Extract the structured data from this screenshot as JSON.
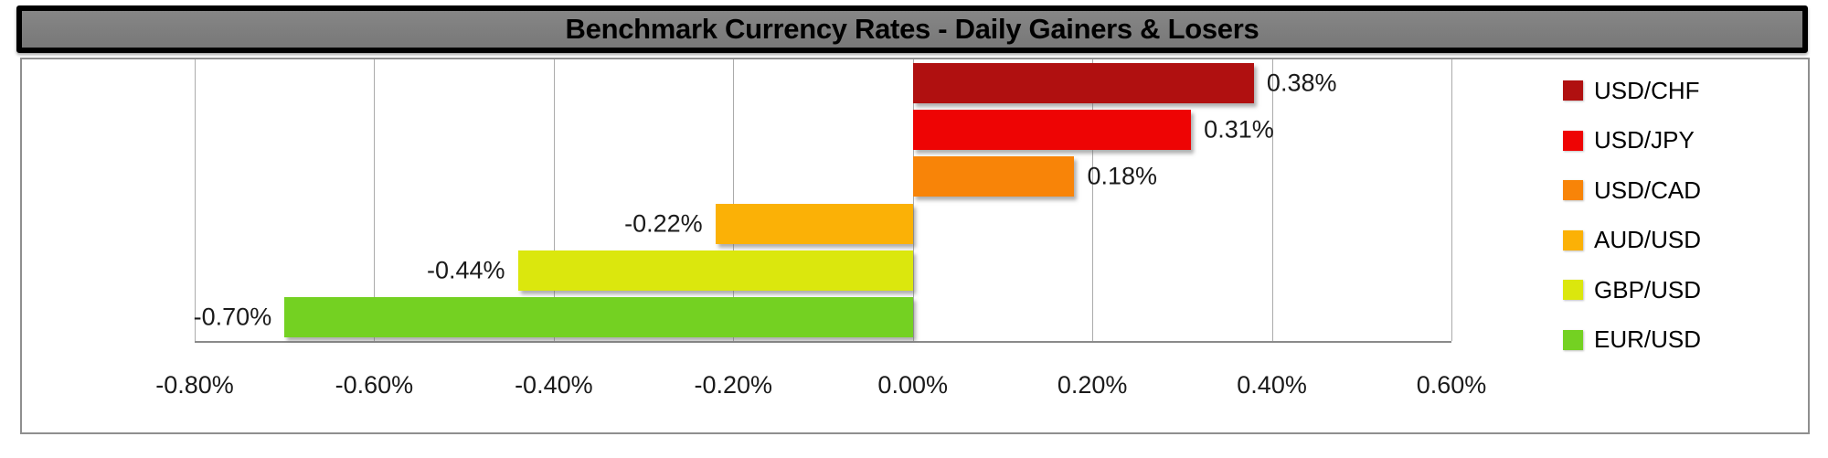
{
  "title": "Benchmark Currency Rates - Daily Gainers & Losers",
  "colors": {
    "title_bg": "#7d7d7d",
    "title_text": "#000000",
    "title_border": "#000000",
    "plot_border": "#8f8f8f",
    "gridline": "#ababab",
    "axis_line": "#8a8a8a",
    "label_text": "#1a1a1a",
    "page_bg": "#ffffff"
  },
  "chart_data": {
    "type": "bar",
    "orientation": "horizontal",
    "title": "Benchmark Currency Rates - Daily Gainers & Losers",
    "categories": [
      "USD/CHF",
      "USD/JPY",
      "USD/CAD",
      "AUD/USD",
      "GBP/USD",
      "EUR/USD"
    ],
    "values": [
      0.38,
      0.31,
      0.18,
      -0.22,
      -0.44,
      -0.7
    ],
    "data_labels": [
      "0.38%",
      "0.31%",
      "0.18%",
      "-0.22%",
      "-0.44%",
      "-0.70%"
    ],
    "bar_colors": [
      "#b01010",
      "#ee0404",
      "#f88408",
      "#fbb106",
      "#dbe70d",
      "#74d122"
    ],
    "xlabel": "",
    "ylabel": "",
    "xlim": [
      -0.8,
      0.6
    ],
    "x_ticks": [
      "-0.80%",
      "-0.60%",
      "-0.40%",
      "-0.20%",
      "0.00%",
      "0.20%",
      "0.40%",
      "0.60%"
    ],
    "x_tick_values": [
      -0.8,
      -0.6,
      -0.4,
      -0.2,
      0.0,
      0.2,
      0.4,
      0.6
    ],
    "grid": true,
    "legend_position": "right",
    "legend": [
      {
        "label": "USD/CHF",
        "color": "#b01010"
      },
      {
        "label": "USD/JPY",
        "color": "#ee0404"
      },
      {
        "label": "USD/CAD",
        "color": "#f88408"
      },
      {
        "label": "AUD/USD",
        "color": "#fbb106"
      },
      {
        "label": "GBP/USD",
        "color": "#dbe70d"
      },
      {
        "label": "EUR/USD",
        "color": "#74d122"
      }
    ]
  }
}
